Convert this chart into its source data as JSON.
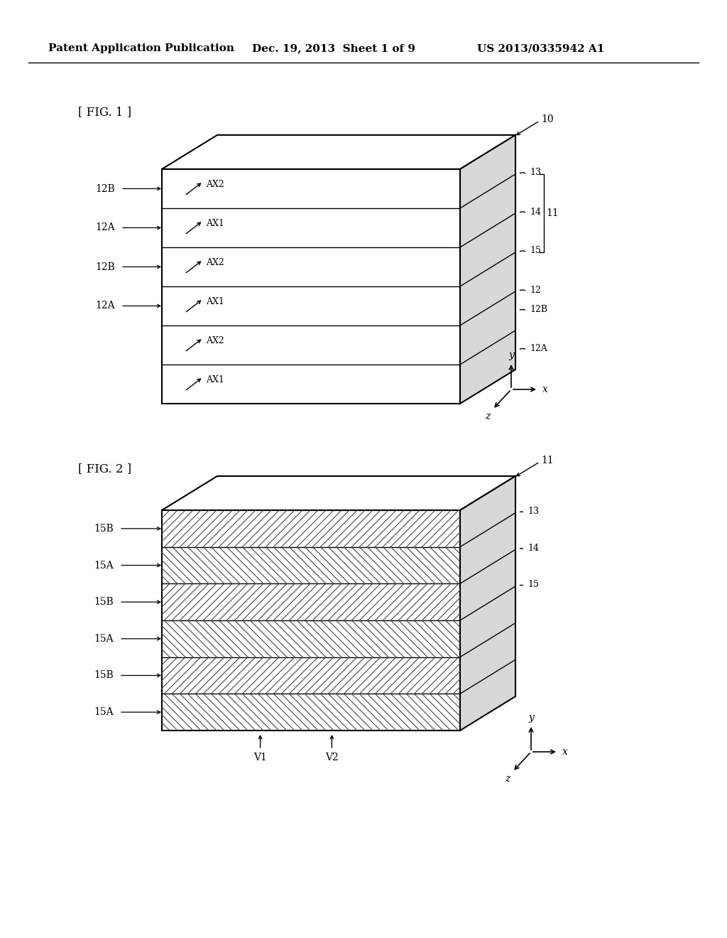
{
  "header_left": "Patent Application Publication",
  "header_mid": "Dec. 19, 2013  Sheet 1 of 9",
  "header_right": "US 2013/0335942 A1",
  "fig1_label": "[ FIG. 1 ]",
  "fig2_label": "[ FIG. 2 ]",
  "bg_color": "#ffffff",
  "line_color": "#000000",
  "fig1_ref": "10",
  "fig2_ref": "11",
  "fig1_layers_left": [
    "12B",
    "12A",
    "12B",
    "12A",
    "12B",
    "12A"
  ],
  "fig1_layers_ax": [
    "AX2",
    "AX1",
    "AX2",
    "AX1",
    "AX2",
    "AX1"
  ],
  "fig1_right_labels": [
    "13",
    "14",
    "15",
    "12"
  ],
  "fig1_right_label_12B": "12B",
  "fig1_right_label_12A": "12A",
  "fig2_layers_left": [
    "15B",
    "15A",
    "15B",
    "15A",
    "15B",
    "15A"
  ],
  "fig2_right_labels": [
    "13",
    "14",
    "15"
  ],
  "fig2_bottom_labels": [
    "V1",
    "V2"
  ],
  "fig2_bracket_label": "11",
  "fig1_bracket_labels": [
    "13",
    "14",
    "15",
    "11"
  ]
}
